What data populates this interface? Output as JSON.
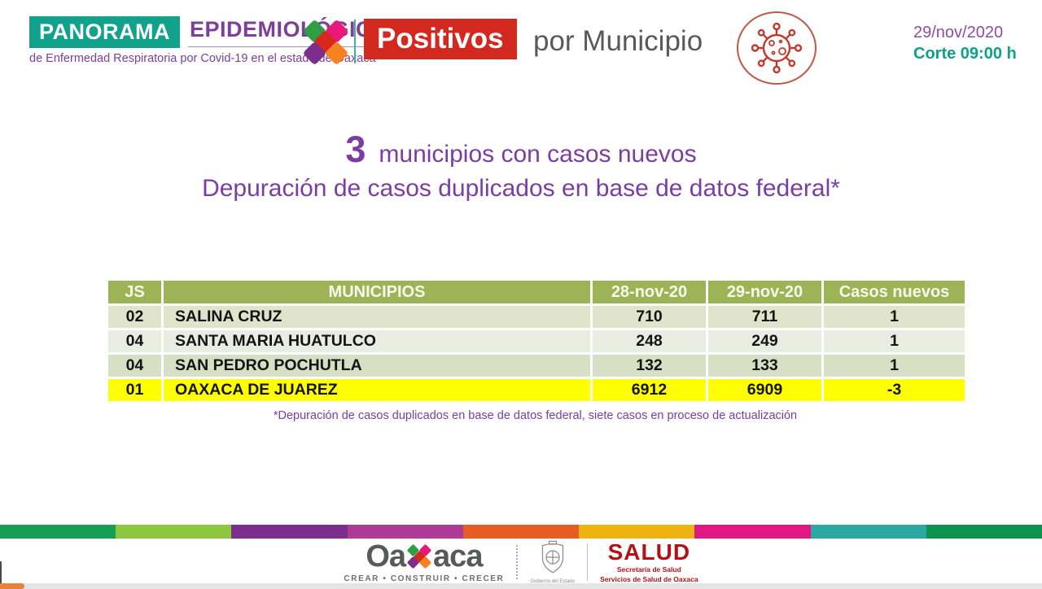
{
  "header": {
    "brand": {
      "box_label": "PANORAMA",
      "title": "EPIDEMIOLÓGICO",
      "subtitle": "de Enfermedad Respiratoria por Covid-19 en el estado de Oaxaca"
    },
    "section_title": {
      "highlight": "Positivos",
      "rest": "por Municipio"
    },
    "date": "29/nov/2020",
    "cutoff": "Corte 09:00 h"
  },
  "headline": {
    "count": "3",
    "line1": "municipios con casos nuevos",
    "line2": "Depuración de casos duplicados en base de datos federal*"
  },
  "table": {
    "columns": [
      "JS",
      "MUNICIPIOS",
      "28-nov-20",
      "29-nov-20",
      "Casos nuevos"
    ],
    "rows": [
      {
        "js": "02",
        "municipio": "SALINA CRUZ",
        "d28": "710",
        "d29": "711",
        "nuevos": "1"
      },
      {
        "js": "04",
        "municipio": "SANTA MARIA HUATULCO",
        "d28": "248",
        "d29": "249",
        "nuevos": "1"
      },
      {
        "js": "04",
        "municipio": "SAN PEDRO POCHUTLA",
        "d28": "132",
        "d29": "133",
        "nuevos": "1"
      },
      {
        "js": "01",
        "municipio": "OAXACA DE JUAREZ",
        "d28": "6912",
        "d29": "6909",
        "nuevos": "-3"
      }
    ],
    "highlighted_row_index": 3,
    "footnote": "*Depuración de casos duplicados en base de datos federal, siete casos en proceso de actualización"
  },
  "footer": {
    "stripe_colors": [
      "#169F54",
      "#8DC63F",
      "#7C2E8C",
      "#AD3B96",
      "#E65C25",
      "#EEB211",
      "#E01884",
      "#2BA8A0",
      "#0F9150"
    ],
    "oaxaca": {
      "prefix": "Oa",
      "suffix": "aca",
      "tagline": "CREAR • CONSTRUIR • CRECER"
    },
    "gobierno_caption": "Gobierno del Estado",
    "salud": {
      "title": "SALUD",
      "line1": "Secretaría de Salud",
      "line2": "Servicios de Salud de Oaxaca"
    }
  },
  "colors": {
    "teal": "#12A18B",
    "brand_purple": "#7D3F98",
    "title_purple": "#7C3DA2",
    "highlight_red": "#D3281E",
    "gray_text": "#58595B",
    "table_header_green": "#9CB356",
    "row_light": "#DFE4CB",
    "row_lighter": "#E9ECE1",
    "row_dark": "#D9DFC4",
    "highlight_yellow": "#FFFF00",
    "salud_red": "#B21117",
    "virus_red": "#C0392B",
    "progress_orange": "#E8823B"
  }
}
